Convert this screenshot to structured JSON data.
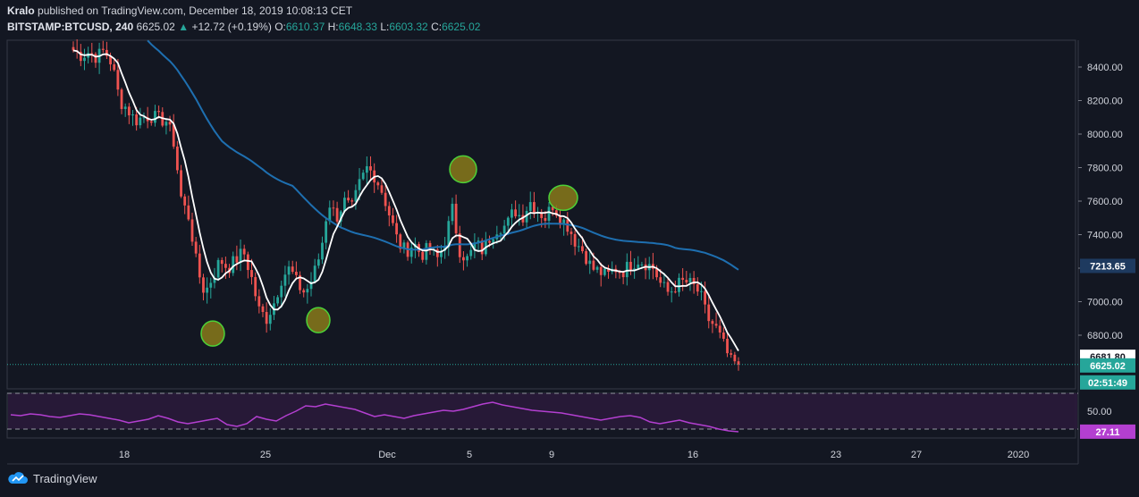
{
  "header": {
    "author": "Kralo",
    "published_text": "published on TradingView.com, December 18, 2019 10:08:13 CET",
    "symbol": "BITSTAMP:BTCUSD, 240",
    "last": "6625.02",
    "change_arrow": "▲",
    "change": "+12.72 (+0.19%)",
    "o_label": "O:",
    "o_value": "6610.37",
    "h_label": "H:",
    "h_value": "6648.33",
    "l_label": "L:",
    "l_value": "6603.32",
    "c_label": "C:",
    "c_value": "6625.02"
  },
  "footer": {
    "brand": "TradingView"
  },
  "colors": {
    "background": "#131722",
    "up": "#26a69a",
    "down": "#ef5350",
    "ma_fast": "#ffffff",
    "ma_slow": "#1e6fb0",
    "rsi": "#b33fd0",
    "rsi_band": "#2a1a3a",
    "highlight_fill": "#8a7a1a",
    "highlight_stroke": "#4cd137"
  },
  "chart_data": [
    {
      "type": "candlestick",
      "title": "BITSTAMP:BTCUSD, 240",
      "x_tick_labels": [
        "18",
        "25",
        "Dec",
        "5",
        "9",
        "16",
        "23",
        "27",
        "2020"
      ],
      "y_tick_labels": [
        "8400.00",
        "8200.00",
        "8000.00",
        "7800.00",
        "7600.00",
        "7400.00",
        "7200.00",
        "7000.00",
        "6800.00"
      ],
      "ylim": [
        6480,
        8560
      ],
      "close_path": [
        8500,
        8470,
        8490,
        8460,
        8500,
        8420,
        8200,
        8150,
        8080,
        8100,
        8110,
        8090,
        8080,
        7950,
        7600,
        7500,
        7200,
        7050,
        7150,
        7250,
        7200,
        7250,
        7300,
        7150,
        6950,
        6900,
        7000,
        7150,
        7200,
        7100,
        7050,
        7150,
        7300,
        7600,
        7500,
        7600,
        7550,
        7700,
        7800,
        7750,
        7650,
        7500,
        7350,
        7300,
        7350,
        7280,
        7320,
        7250,
        7350,
        7550,
        7300,
        7250,
        7350,
        7300,
        7400,
        7450,
        7450,
        7550,
        7500,
        7600,
        7550,
        7500,
        7580,
        7500,
        7450,
        7350,
        7300,
        7200,
        7180,
        7150,
        7200,
        7180,
        7220,
        7250,
        7230,
        7200,
        7100,
        7050,
        7100,
        7120,
        7100,
        7050,
        6900,
        6850,
        6750,
        6640,
        6625
      ],
      "horizontal_line": 6625.02,
      "price_labels": {
        "ma_slow": "7213.65",
        "ma_fast": "6681.80",
        "last": "6625.02",
        "countdown": "02:51:49"
      },
      "highlight_circles": [
        6810,
        6890,
        7790,
        7620
      ],
      "rsi": {
        "ylim": [
          20,
          70
        ],
        "levels": [
          70,
          30
        ],
        "y_tick_label": "50.00",
        "last_label": "27.11",
        "values": [
          46,
          45,
          47,
          46,
          44,
          43,
          45,
          47,
          46,
          44,
          42,
          40,
          37,
          39,
          41,
          45,
          42,
          38,
          36,
          38,
          40,
          42,
          35,
          33,
          36,
          44,
          41,
          39,
          45,
          50,
          56,
          55,
          58,
          56,
          54,
          52,
          48,
          44,
          46,
          44,
          42,
          45,
          47,
          49,
          51,
          50,
          52,
          55,
          58,
          60,
          57,
          55,
          53,
          51,
          50,
          49,
          48,
          46,
          44,
          42,
          40,
          42,
          44,
          45,
          43,
          38,
          36,
          38,
          40,
          37,
          35,
          33,
          30,
          28,
          27
        ]
      }
    }
  ]
}
